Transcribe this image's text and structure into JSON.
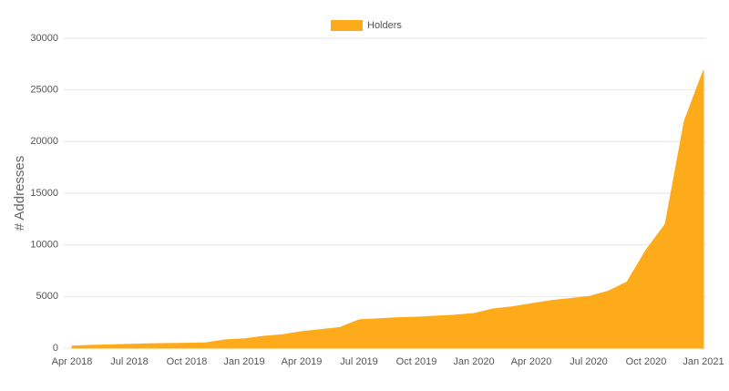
{
  "chart_data": {
    "type": "area",
    "y_label": "# Addresses",
    "x": [
      "Apr 2018",
      "May 2018",
      "Jun 2018",
      "Jul 2018",
      "Aug 2018",
      "Sep 2018",
      "Oct 2018",
      "Nov 2018",
      "Dec 2018",
      "Jan 2019",
      "Feb 2019",
      "Mar 2019",
      "Apr 2019",
      "May 2019",
      "Jun 2019",
      "Jul 2019",
      "Aug 2019",
      "Sep 2019",
      "Oct 2019",
      "Nov 2019",
      "Dec 2019",
      "Jan 2020",
      "Feb 2020",
      "Mar 2020",
      "Apr 2020",
      "May 2020",
      "Jun 2020",
      "Jul 2020",
      "Aug 2020",
      "Sep 2020",
      "Oct 2020",
      "Nov 2020",
      "Dec 2020",
      "Jan 2021"
    ],
    "series": [
      {
        "name": "Holders",
        "color": "#fdab1a",
        "values": [
          200,
          280,
          320,
          380,
          420,
          450,
          470,
          520,
          800,
          900,
          1150,
          1300,
          1600,
          1800,
          2000,
          2750,
          2850,
          2950,
          3000,
          3100,
          3200,
          3350,
          3800,
          4000,
          4300,
          4600,
          4800,
          5000,
          5500,
          6400,
          9500,
          12000,
          22000,
          26900
        ]
      }
    ],
    "xticks": [
      "Apr 2018",
      "Jul 2018",
      "Oct 2018",
      "Jan 2019",
      "Apr 2019",
      "Jul 2019",
      "Oct 2019",
      "Jan 2020",
      "Apr 2020",
      "Jul 2020",
      "Oct 2020",
      "Jan 2021"
    ],
    "ylim": [
      0,
      30000
    ],
    "yticks": [
      0,
      5000,
      10000,
      15000,
      20000,
      25000,
      30000
    ],
    "grid": true,
    "legend": "top"
  }
}
